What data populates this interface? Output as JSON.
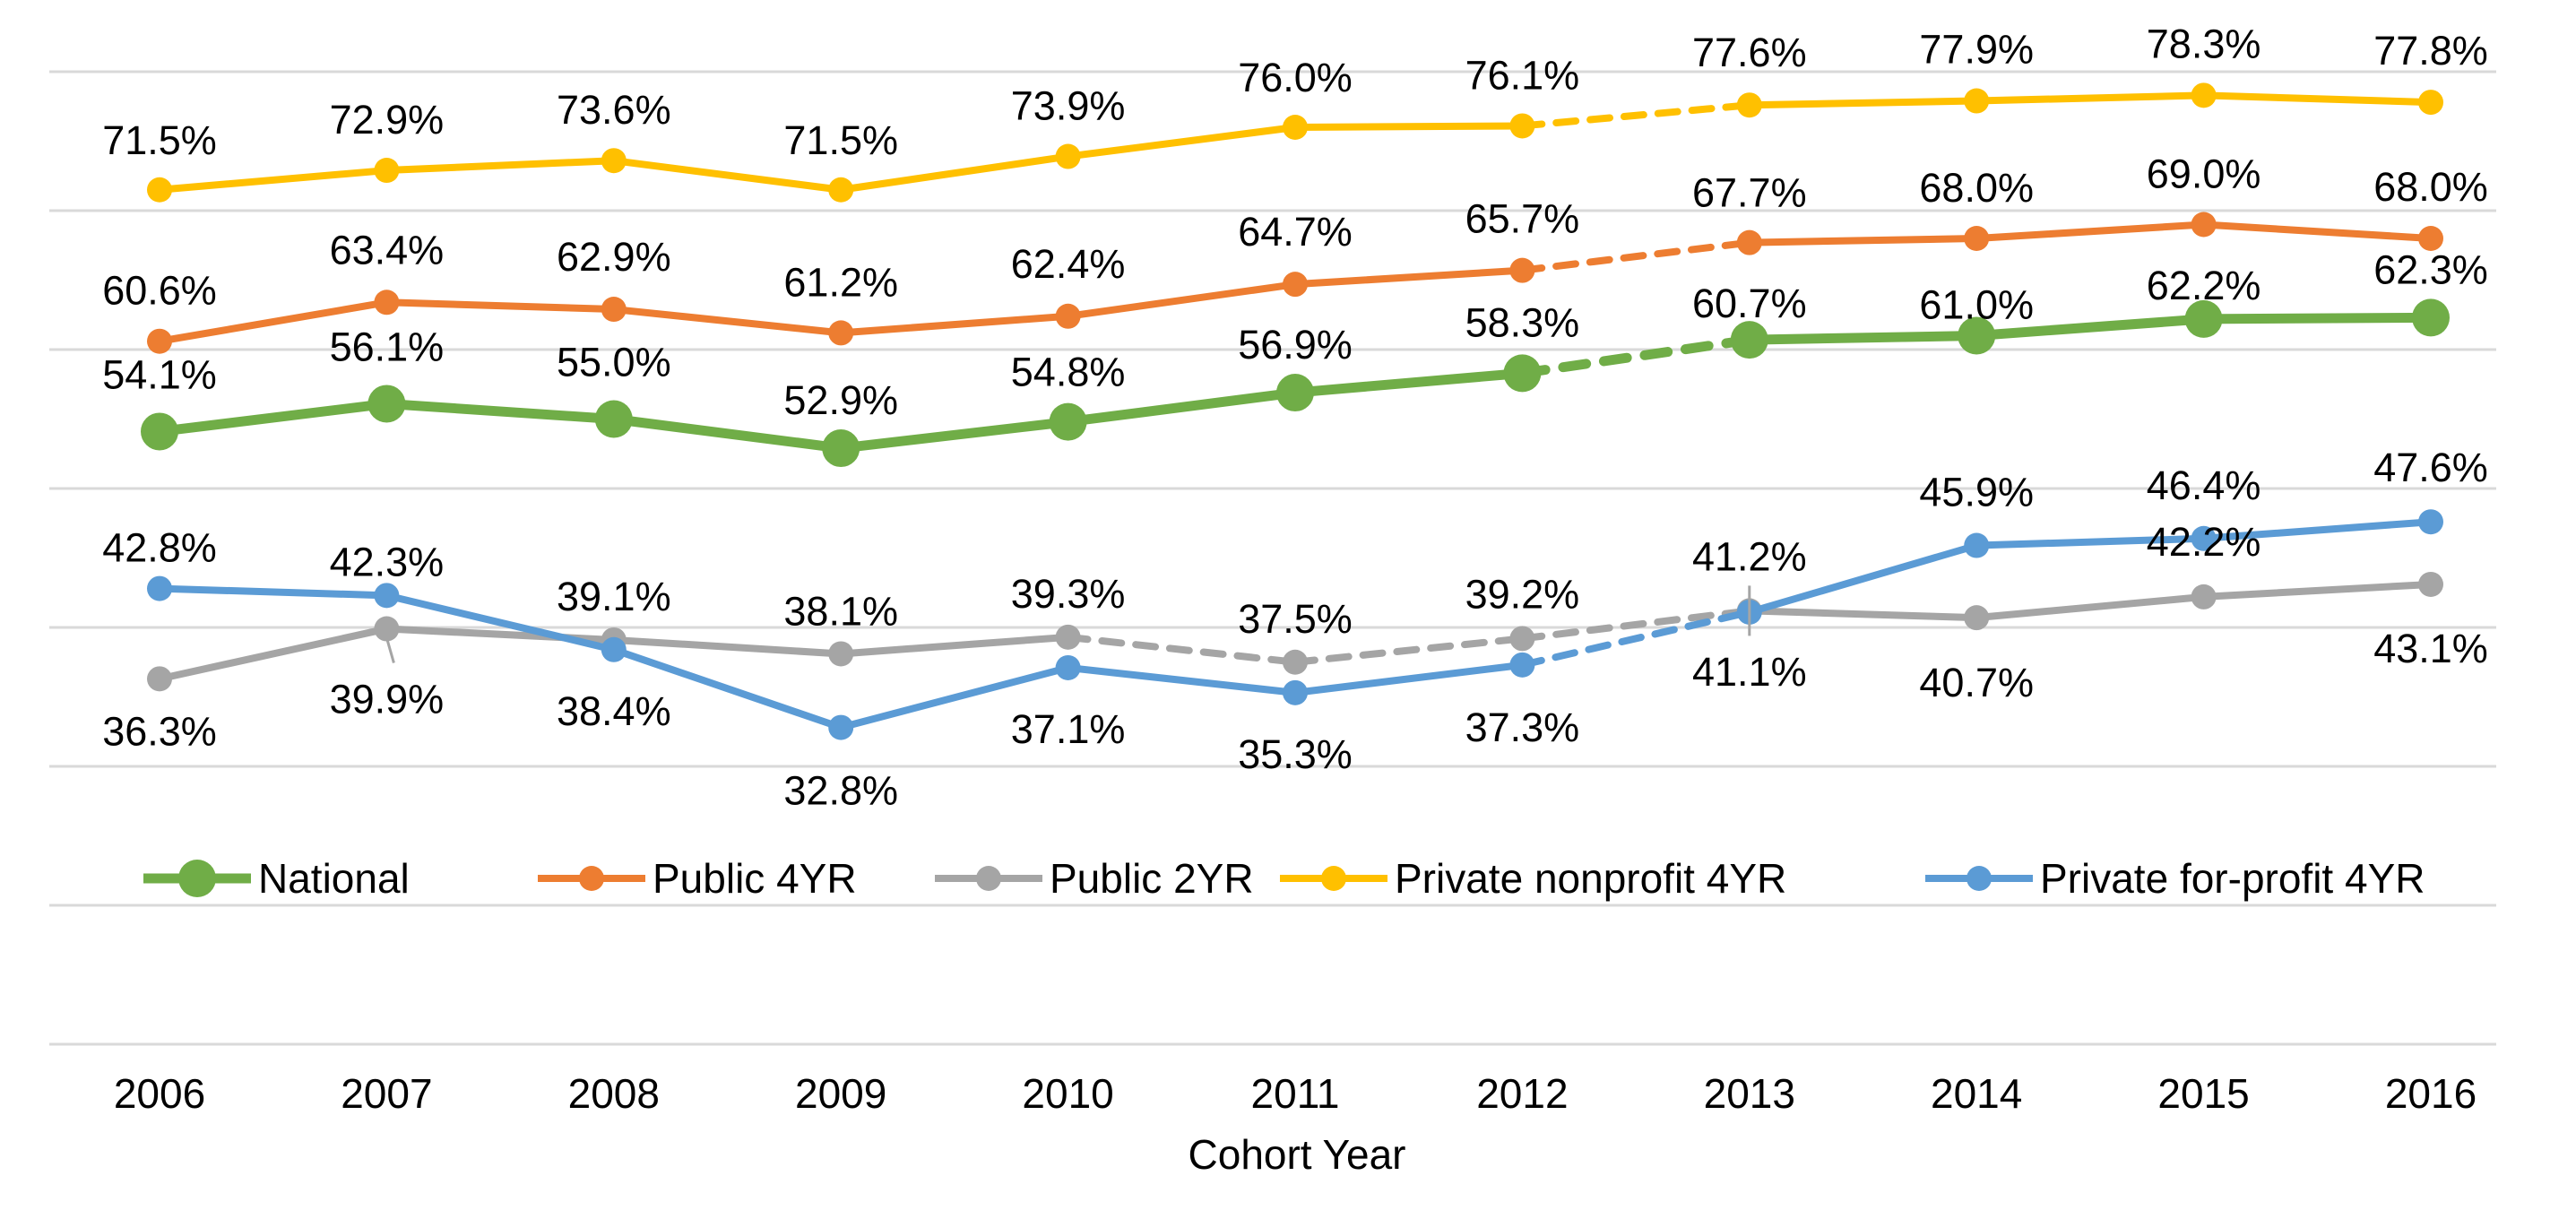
{
  "chart_data": {
    "type": "line",
    "title": "",
    "xlabel": "Cohort Year",
    "ylabel": "",
    "x": [
      "2006",
      "2007",
      "2008",
      "2009",
      "2010",
      "2011",
      "2012",
      "2013",
      "2014",
      "2015",
      "2016"
    ],
    "ylim": [
      10,
      80
    ],
    "grid": true,
    "legend": "bottom-inside",
    "series": [
      {
        "name": "National",
        "color": "#70ad47",
        "values": [
          54.1,
          56.1,
          55.0,
          52.9,
          54.8,
          56.9,
          58.3,
          60.7,
          61.0,
          62.2,
          62.3
        ],
        "labels": [
          "54.1%",
          "56.1%",
          "55.0%",
          "52.9%",
          "54.8%",
          "56.9%",
          "58.3%",
          "60.7%",
          "61.0%",
          "62.2%",
          "62.3%"
        ],
        "dashed_segments": [
          6
        ]
      },
      {
        "name": "Public 4YR",
        "color": "#ed7d31",
        "values": [
          60.6,
          63.4,
          62.9,
          61.2,
          62.4,
          64.7,
          65.7,
          67.7,
          68.0,
          69.0,
          68.0
        ],
        "labels": [
          "60.6%",
          "63.4%",
          "62.9%",
          "61.2%",
          "62.4%",
          "64.7%",
          "65.7%",
          "67.7%",
          "68.0%",
          "69.0%",
          "68.0%"
        ],
        "dashed_segments": [
          6
        ]
      },
      {
        "name": "Public 2YR",
        "color": "#a5a5a5",
        "values": [
          36.3,
          39.9,
          39.1,
          38.1,
          39.3,
          37.5,
          39.2,
          41.2,
          40.7,
          42.2,
          43.1
        ],
        "labels": [
          "36.3%",
          "39.9%",
          "39.1%",
          "38.1%",
          "39.3%",
          "37.5%",
          "39.2%",
          "41.2%",
          "40.7%",
          "42.2%",
          "43.1%"
        ],
        "dashed_segments": [
          4,
          5,
          6
        ]
      },
      {
        "name": "Private nonprofit 4YR",
        "color": "#ffc000",
        "values": [
          71.5,
          72.9,
          73.6,
          71.5,
          73.9,
          76.0,
          76.1,
          77.6,
          77.9,
          78.3,
          77.8
        ],
        "labels": [
          "71.5%",
          "72.9%",
          "73.6%",
          "71.5%",
          "73.9%",
          "76.0%",
          "76.1%",
          "77.6%",
          "77.9%",
          "78.3%",
          "77.8%"
        ],
        "dashed_segments": [
          6
        ]
      },
      {
        "name": "Private for-profit 4YR",
        "color": "#5b9bd5",
        "values": [
          42.8,
          42.3,
          38.4,
          32.8,
          37.1,
          35.3,
          37.3,
          41.1,
          45.9,
          46.4,
          47.6
        ],
        "labels": [
          "42.8%",
          "42.3%",
          "38.4%",
          "32.8%",
          "37.1%",
          "35.3%",
          "37.3%",
          "41.1%",
          "45.9%",
          "46.4%",
          "47.6%"
        ],
        "dashed_segments": [
          6
        ]
      }
    ]
  }
}
